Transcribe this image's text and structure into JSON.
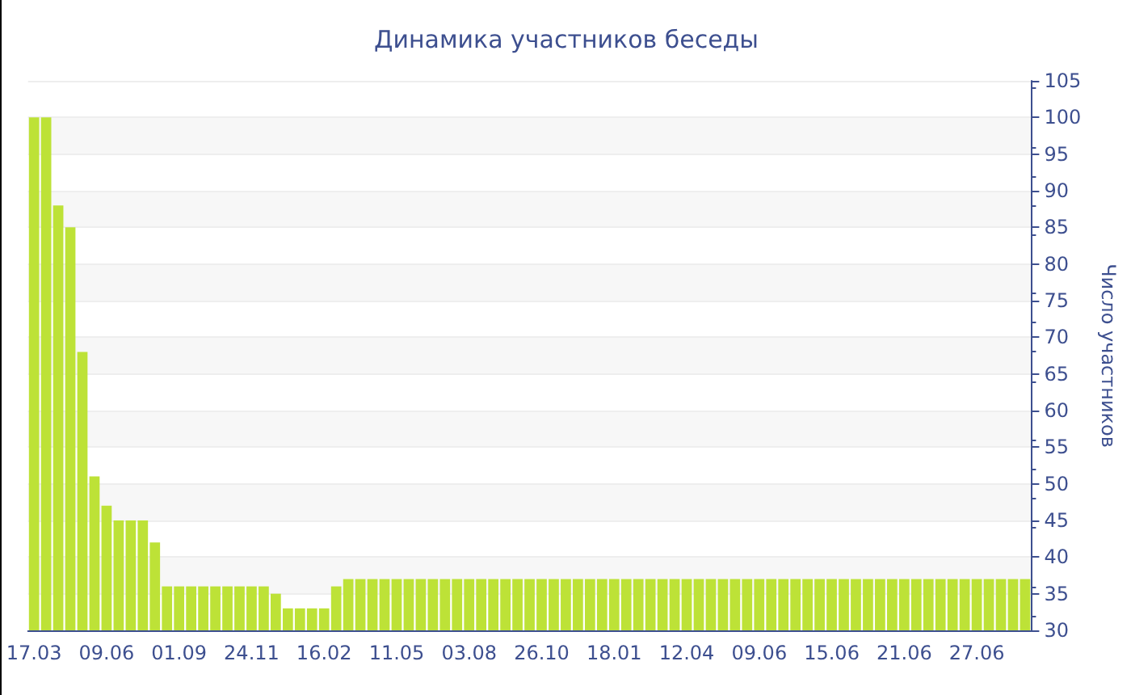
{
  "chart_data": {
    "type": "bar",
    "title": "Динамика участников беседы",
    "ylabel": "Число участников",
    "categories": [
      "17.03",
      null,
      null,
      null,
      null,
      null,
      "09.06",
      null,
      null,
      null,
      null,
      null,
      "01.09",
      null,
      null,
      null,
      null,
      null,
      "24.11",
      null,
      null,
      null,
      null,
      null,
      "16.02",
      null,
      null,
      null,
      null,
      null,
      "11.05",
      null,
      null,
      null,
      null,
      null,
      "03.08",
      null,
      null,
      null,
      null,
      null,
      "26.10",
      null,
      null,
      null,
      null,
      null,
      "18.01",
      null,
      null,
      null,
      null,
      null,
      "12.04",
      null,
      null,
      null,
      null,
      null,
      "09.06",
      null,
      null,
      null,
      null,
      null,
      "15.06",
      null,
      null,
      null,
      null,
      null,
      "21.06",
      null,
      null,
      null,
      null,
      null,
      "27.06",
      null,
      null,
      null,
      null
    ],
    "values": [
      100,
      100,
      88,
      85,
      68,
      51,
      47,
      45,
      45,
      45,
      42,
      36,
      36,
      36,
      36,
      36,
      36,
      36,
      36,
      36,
      35,
      33,
      33,
      33,
      33,
      36,
      37,
      37,
      37,
      37,
      37,
      37,
      37,
      37,
      37,
      37,
      37,
      37,
      37,
      37,
      37,
      37,
      37,
      37,
      37,
      37,
      37,
      37,
      37,
      37,
      37,
      37,
      37,
      37,
      37,
      37,
      37,
      37,
      37,
      37,
      37,
      37,
      37,
      37,
      37,
      37,
      37,
      37,
      37,
      37,
      37,
      37,
      37,
      37,
      37,
      37,
      37,
      37,
      37,
      37,
      37,
      37,
      37
    ],
    "color": "#bde237",
    "ylim": [
      30,
      105
    ],
    "yticks": [
      30,
      35,
      40,
      45,
      50,
      55,
      60,
      65,
      70,
      75,
      80,
      85,
      90,
      95,
      100,
      105
    ],
    "grid": "y"
  }
}
